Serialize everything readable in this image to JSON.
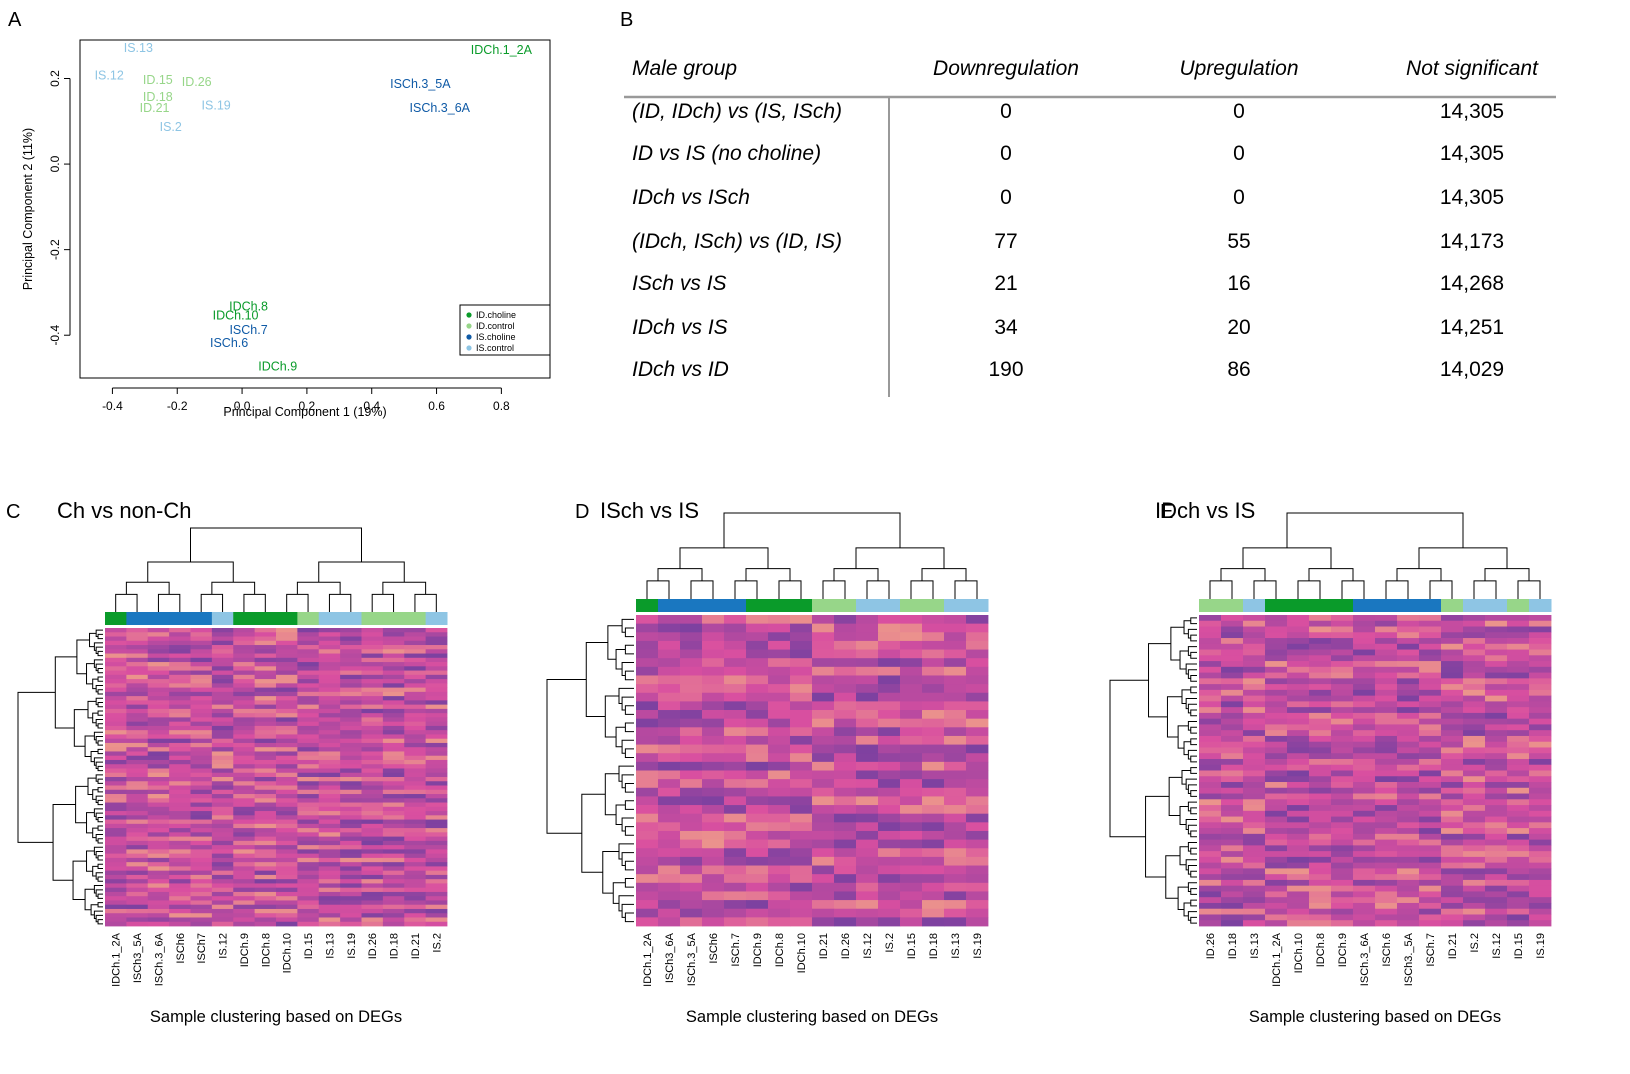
{
  "panels": {
    "a": "A",
    "b": "B",
    "c": "C",
    "d": "D",
    "e": "E"
  },
  "colors": {
    "id_choline": "#0a9b2a",
    "id_control": "#97d689",
    "is_choline": "#0f5aa6",
    "is_control": "#8ec5e4",
    "is_choline_bar": "#1a77c0",
    "heat_low": "#6b3ea0",
    "heat_mid": "#d94fa0",
    "heat_high": "#fcd27a"
  },
  "chart_data": [
    {
      "type": "scatter",
      "panel": "A",
      "xlabel": "Principal Component 1 (19%)",
      "ylabel": "Principal Component 2 (11%)",
      "xlim": [
        -0.5,
        0.95
      ],
      "ylim": [
        -0.5,
        0.29
      ],
      "xticks": [
        -0.4,
        -0.2,
        0.0,
        0.2,
        0.4,
        0.6,
        0.8
      ],
      "xtick_labels": [
        "-0.4",
        "-0.2",
        "0.0",
        "0.2",
        "0.4",
        "0.6",
        "0.8"
      ],
      "yticks": [
        0.2,
        0.0,
        -0.2,
        -0.4
      ],
      "ytick_labels": [
        "0.2",
        "0.0",
        "-0.2",
        "-0.4"
      ],
      "legend": [
        "ID.choline",
        "ID.control",
        "IS.choline",
        "IS.control"
      ],
      "legend_position": "bottom-right",
      "points": [
        {
          "label": "IS.13",
          "x": -0.32,
          "y": 0.27,
          "group": "IS.control"
        },
        {
          "label": "IDCh.1_2A",
          "x": 0.8,
          "y": 0.265,
          "group": "ID.choline"
        },
        {
          "label": "IS.12",
          "x": -0.41,
          "y": 0.205,
          "group": "IS.control"
        },
        {
          "label": "ID.15",
          "x": -0.26,
          "y": 0.195,
          "group": "ID.control"
        },
        {
          "label": "ID.26",
          "x": -0.14,
          "y": 0.19,
          "group": "ID.control"
        },
        {
          "label": "ISCh.3_5A",
          "x": 0.55,
          "y": 0.185,
          "group": "IS.choline"
        },
        {
          "label": "ID.18",
          "x": -0.26,
          "y": 0.155,
          "group": "ID.control"
        },
        {
          "label": "ID.21",
          "x": -0.27,
          "y": 0.13,
          "group": "ID.control"
        },
        {
          "label": "IS.19",
          "x": -0.08,
          "y": 0.135,
          "group": "IS.control"
        },
        {
          "label": "ISCh.3_6A",
          "x": 0.61,
          "y": 0.13,
          "group": "IS.choline"
        },
        {
          "label": "IS.2",
          "x": -0.22,
          "y": 0.085,
          "group": "IS.control"
        },
        {
          "label": "IDCh.8",
          "x": 0.02,
          "y": -0.335,
          "group": "ID.choline"
        },
        {
          "label": "IDCh.10",
          "x": -0.02,
          "y": -0.355,
          "group": "ID.choline"
        },
        {
          "label": "ISCh.7",
          "x": 0.02,
          "y": -0.39,
          "group": "IS.choline"
        },
        {
          "label": "ISCh.6",
          "x": -0.04,
          "y": -0.42,
          "group": "IS.choline"
        },
        {
          "label": "IDCh.9",
          "x": 0.11,
          "y": -0.475,
          "group": "ID.choline"
        }
      ]
    },
    {
      "type": "table",
      "panel": "B",
      "headers": [
        "Male group",
        "Downregulation",
        "Upregulation",
        "Not significant"
      ],
      "rows": [
        [
          "(ID, IDch) vs (IS, ISch)",
          "0",
          "0",
          "14,305"
        ],
        [
          "ID vs IS (no choline)",
          "0",
          "0",
          "14,305"
        ],
        [
          "IDch vs ISch",
          "0",
          "0",
          "14,305"
        ],
        [
          "(IDch, ISch) vs (ID, IS)",
          "77",
          "55",
          "14,173"
        ],
        [
          "ISch vs IS",
          "21",
          "16",
          "14,268"
        ],
        [
          "IDch vs IS",
          "34",
          "20",
          "14,251"
        ],
        [
          "IDch vs ID",
          "190",
          "86",
          "14,029"
        ]
      ]
    },
    {
      "type": "heatmap",
      "panel": "C",
      "title": "Ch vs non-Ch",
      "xlabel": "Sample clustering based on DEGs",
      "n_rows": 70,
      "samples": [
        "IDCh.1_2A",
        "ISCh3_5A",
        "ISCh.3_6A",
        "ISCh6",
        "ISCh7",
        "IS.12",
        "IDCh.9",
        "IDCh.8",
        "IDCh.10",
        "ID.15",
        "IS.13",
        "IS.19",
        "ID.26",
        "ID.18",
        "ID.21",
        "IS.2"
      ],
      "groups": [
        "ID.choline",
        "IS.choline",
        "IS.choline",
        "IS.choline",
        "IS.choline",
        "IS.control",
        "ID.choline",
        "ID.choline",
        "ID.choline",
        "ID.control",
        "IS.control",
        "IS.control",
        "ID.control",
        "ID.control",
        "ID.control",
        "IS.control"
      ]
    },
    {
      "type": "heatmap",
      "panel": "D",
      "title": "ISch vs IS",
      "xlabel": "Sample clustering based on DEGs",
      "n_rows": 36,
      "samples": [
        "IDCh.1_2A",
        "ISCh3_6A",
        "ISCh.3_5A",
        "ISCh6",
        "ISCh.7",
        "IDCh.9",
        "IDCh.8",
        "IDCh.10",
        "ID.21",
        "ID.26",
        "IS.12",
        "IS.2",
        "ID.15",
        "ID.18",
        "IS.13",
        "IS.19"
      ],
      "groups": [
        "ID.choline",
        "IS.choline",
        "IS.choline",
        "IS.choline",
        "IS.choline",
        "ID.choline",
        "ID.choline",
        "ID.choline",
        "ID.control",
        "ID.control",
        "IS.control",
        "IS.control",
        "ID.control",
        "ID.control",
        "IS.control",
        "IS.control"
      ]
    },
    {
      "type": "heatmap",
      "panel": "E",
      "title": "IDch vs IS",
      "xlabel": "Sample clustering based on DEGs",
      "n_rows": 54,
      "samples": [
        "ID.26",
        "ID.18",
        "IS.13",
        "IDCh.1_2A",
        "IDCh.10",
        "IDCh.8",
        "IDCh.9",
        "ISCh.3_6A",
        "ISCh.6",
        "ISCh3._5A",
        "ISCh.7",
        "ID.21",
        "IS.2",
        "IS.12",
        "ID.15",
        "IS.19"
      ],
      "groups": [
        "ID.control",
        "ID.control",
        "IS.control",
        "ID.choline",
        "ID.choline",
        "ID.choline",
        "ID.choline",
        "IS.choline",
        "IS.choline",
        "IS.choline",
        "IS.choline",
        "ID.control",
        "IS.control",
        "IS.control",
        "ID.control",
        "IS.control"
      ]
    }
  ]
}
